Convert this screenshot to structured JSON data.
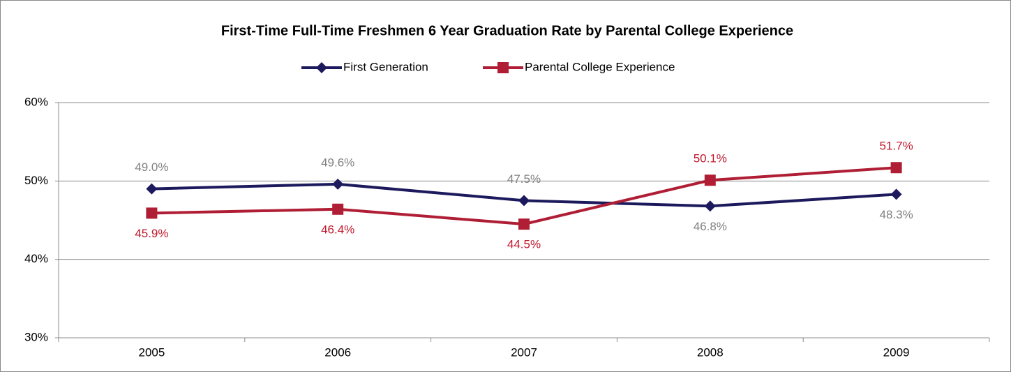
{
  "chart_data": {
    "type": "line",
    "title": "First-Time Full-Time Freshmen 6 Year Graduation Rate by  Parental College Experience",
    "categories": [
      "2005",
      "2006",
      "2007",
      "2008",
      "2009"
    ],
    "series": [
      {
        "name": "First Generation",
        "color": "#1c1a5c",
        "label_color": "#808080",
        "marker": "diamond",
        "values": [
          49.0,
          49.6,
          47.5,
          46.8,
          48.3
        ],
        "value_labels": [
          "49.0%",
          "49.6%",
          "47.5%",
          "46.8%",
          "48.3%"
        ]
      },
      {
        "name": "Parental College Experience",
        "color": "#b01e35",
        "label_color": "#c0182c",
        "marker": "square",
        "values": [
          45.9,
          46.4,
          44.5,
          50.1,
          51.7
        ],
        "value_labels": [
          "45.9%",
          "46.4%",
          "44.5%",
          "50.1%",
          "51.7%"
        ]
      }
    ],
    "ylim": [
      30,
      60
    ],
    "yticks": [
      {
        "value": 30,
        "label": "30%"
      },
      {
        "value": 40,
        "label": "40%"
      },
      {
        "value": 50,
        "label": "50%"
      },
      {
        "value": 60,
        "label": "60%"
      }
    ],
    "grid": true,
    "legend": "top"
  }
}
